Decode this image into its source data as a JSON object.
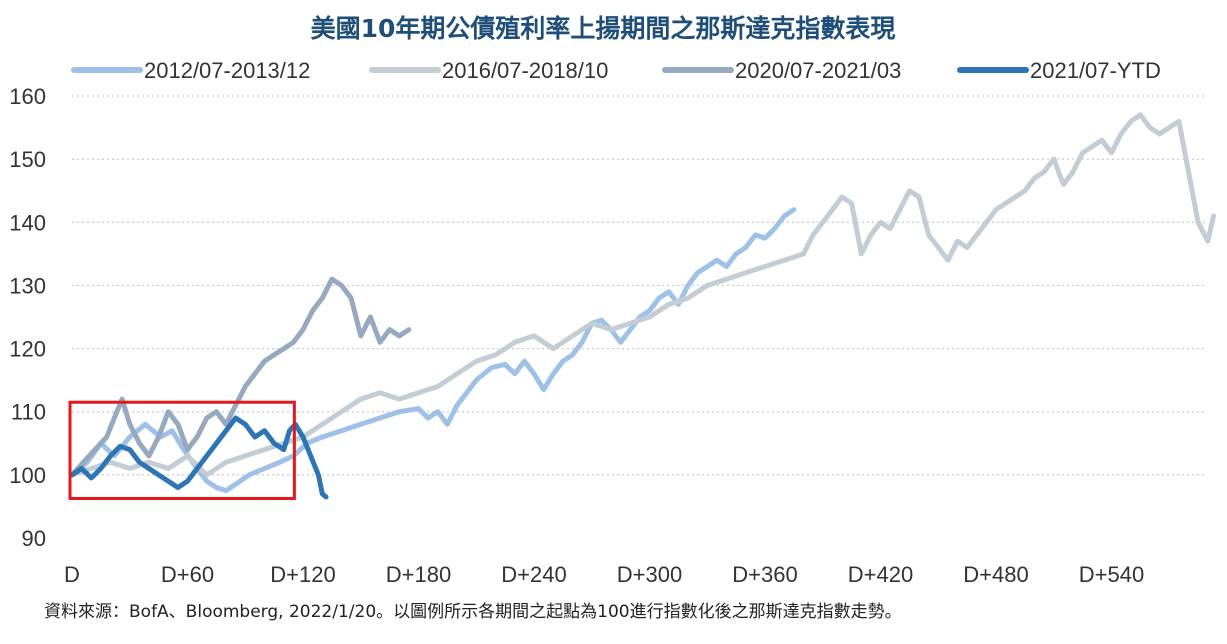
{
  "chart_data": {
    "type": "line",
    "title": "美國10年期公債殖利率上揚期間之那斯達克指數表現",
    "note": "資料來源：BofA、Bloomberg, 2022/1/20。以圖例所示各期間之起點為100進行指數化後之那斯達克指數走勢。",
    "x_ticks": [
      "D",
      "D+60",
      "D+120",
      "D+180",
      "D+240",
      "D+300",
      "D+360",
      "D+420",
      "D+480",
      "D+540"
    ],
    "y_ticks": [
      "160",
      "150",
      "140",
      "130",
      "120",
      "110",
      "100",
      "90"
    ],
    "ylim": [
      90,
      160
    ],
    "xlim": [
      0,
      590
    ],
    "grid": true,
    "legend_position": "top",
    "highlight_box": {
      "x_range": [
        0,
        115
      ],
      "y_range": [
        98,
        111.5
      ],
      "color": "#e3191b"
    },
    "series": [
      {
        "name": "2012/07-2013/12",
        "color": "#9fc1e7",
        "points": [
          [
            0,
            100
          ],
          [
            8,
            102
          ],
          [
            15,
            105
          ],
          [
            22,
            103
          ],
          [
            30,
            106
          ],
          [
            38,
            108
          ],
          [
            46,
            106
          ],
          [
            52,
            107
          ],
          [
            58,
            104
          ],
          [
            65,
            101
          ],
          [
            70,
            99
          ],
          [
            75,
            98
          ],
          [
            80,
            97.5
          ],
          [
            85,
            98.5
          ],
          [
            92,
            100
          ],
          [
            100,
            101
          ],
          [
            108,
            102
          ],
          [
            115,
            103
          ],
          [
            122,
            105
          ],
          [
            130,
            106
          ],
          [
            140,
            107
          ],
          [
            150,
            108
          ],
          [
            160,
            109
          ],
          [
            170,
            110
          ],
          [
            180,
            110.5
          ],
          [
            185,
            109
          ],
          [
            190,
            110
          ],
          [
            195,
            108
          ],
          [
            200,
            111
          ],
          [
            205,
            113
          ],
          [
            210,
            115
          ],
          [
            218,
            117
          ],
          [
            225,
            117.5
          ],
          [
            230,
            116
          ],
          [
            235,
            118
          ],
          [
            240,
            116
          ],
          [
            245,
            113.5
          ],
          [
            250,
            116
          ],
          [
            255,
            118
          ],
          [
            260,
            119
          ],
          [
            265,
            121
          ],
          [
            270,
            124
          ],
          [
            275,
            124.5
          ],
          [
            280,
            123
          ],
          [
            285,
            121
          ],
          [
            290,
            123
          ],
          [
            295,
            125
          ],
          [
            300,
            126
          ],
          [
            305,
            128
          ],
          [
            310,
            129
          ],
          [
            315,
            127
          ],
          [
            320,
            130
          ],
          [
            325,
            132
          ],
          [
            330,
            133
          ],
          [
            335,
            134
          ],
          [
            340,
            133
          ],
          [
            345,
            135
          ],
          [
            350,
            136
          ],
          [
            355,
            138
          ],
          [
            360,
            137.5
          ],
          [
            365,
            139
          ],
          [
            370,
            141
          ],
          [
            375,
            142
          ]
        ]
      },
      {
        "name": "2016/07-2018/10",
        "color": "#c4cdd5",
        "points": [
          [
            0,
            100
          ],
          [
            10,
            101
          ],
          [
            20,
            102
          ],
          [
            30,
            101
          ],
          [
            40,
            102
          ],
          [
            50,
            101
          ],
          [
            60,
            103
          ],
          [
            70,
            100
          ],
          [
            80,
            102
          ],
          [
            90,
            103
          ],
          [
            100,
            104
          ],
          [
            110,
            105
          ],
          [
            120,
            106
          ],
          [
            130,
            108
          ],
          [
            140,
            110
          ],
          [
            150,
            112
          ],
          [
            160,
            113
          ],
          [
            170,
            112
          ],
          [
            180,
            113
          ],
          [
            190,
            114
          ],
          [
            200,
            116
          ],
          [
            210,
            118
          ],
          [
            220,
            119
          ],
          [
            230,
            121
          ],
          [
            240,
            122
          ],
          [
            250,
            120
          ],
          [
            260,
            122
          ],
          [
            270,
            124
          ],
          [
            280,
            123
          ],
          [
            290,
            124
          ],
          [
            300,
            125
          ],
          [
            310,
            127
          ],
          [
            320,
            128
          ],
          [
            330,
            130
          ],
          [
            340,
            131
          ],
          [
            350,
            132
          ],
          [
            360,
            133
          ],
          [
            370,
            134
          ],
          [
            380,
            135
          ],
          [
            385,
            138
          ],
          [
            390,
            140
          ],
          [
            395,
            142
          ],
          [
            400,
            144
          ],
          [
            405,
            143
          ],
          [
            410,
            135
          ],
          [
            415,
            138
          ],
          [
            420,
            140
          ],
          [
            425,
            139
          ],
          [
            430,
            142
          ],
          [
            435,
            145
          ],
          [
            440,
            144
          ],
          [
            445,
            138
          ],
          [
            450,
            136
          ],
          [
            455,
            134
          ],
          [
            460,
            137
          ],
          [
            465,
            136
          ],
          [
            470,
            138
          ],
          [
            475,
            140
          ],
          [
            480,
            142
          ],
          [
            485,
            143
          ],
          [
            490,
            144
          ],
          [
            495,
            145
          ],
          [
            500,
            147
          ],
          [
            505,
            148
          ],
          [
            510,
            150
          ],
          [
            515,
            146
          ],
          [
            520,
            148
          ],
          [
            525,
            151
          ],
          [
            530,
            152
          ],
          [
            535,
            153
          ],
          [
            540,
            151
          ],
          [
            545,
            154
          ],
          [
            550,
            156
          ],
          [
            555,
            157
          ],
          [
            560,
            155
          ],
          [
            565,
            154
          ],
          [
            570,
            155
          ],
          [
            575,
            156
          ],
          [
            580,
            148
          ],
          [
            585,
            140
          ],
          [
            590,
            137
          ],
          [
            593,
            141
          ]
        ]
      },
      {
        "name": "2020/07-2021/03",
        "color": "#97a9bf",
        "points": [
          [
            0,
            100
          ],
          [
            6,
            102
          ],
          [
            12,
            104
          ],
          [
            18,
            106
          ],
          [
            22,
            109
          ],
          [
            26,
            112
          ],
          [
            30,
            108
          ],
          [
            35,
            105
          ],
          [
            40,
            103
          ],
          [
            45,
            106
          ],
          [
            50,
            110
          ],
          [
            55,
            108
          ],
          [
            60,
            104
          ],
          [
            65,
            106
          ],
          [
            70,
            109
          ],
          [
            75,
            110
          ],
          [
            80,
            108
          ],
          [
            85,
            111
          ],
          [
            90,
            114
          ],
          [
            95,
            116
          ],
          [
            100,
            118
          ],
          [
            105,
            119
          ],
          [
            110,
            120
          ],
          [
            115,
            121
          ],
          [
            120,
            123
          ],
          [
            125,
            126
          ],
          [
            130,
            128
          ],
          [
            135,
            131
          ],
          [
            140,
            130
          ],
          [
            145,
            128
          ],
          [
            150,
            122
          ],
          [
            155,
            125
          ],
          [
            160,
            121
          ],
          [
            165,
            123
          ],
          [
            170,
            122
          ],
          [
            175,
            123
          ]
        ]
      },
      {
        "name": "2021/07-YTD",
        "color": "#2e75b6",
        "points": [
          [
            0,
            100
          ],
          [
            5,
            101
          ],
          [
            10,
            99.5
          ],
          [
            15,
            101
          ],
          [
            20,
            103
          ],
          [
            25,
            104.5
          ],
          [
            30,
            104
          ],
          [
            35,
            102
          ],
          [
            40,
            101
          ],
          [
            45,
            100
          ],
          [
            50,
            99
          ],
          [
            55,
            98
          ],
          [
            60,
            99
          ],
          [
            65,
            101
          ],
          [
            70,
            103
          ],
          [
            75,
            105
          ],
          [
            80,
            107
          ],
          [
            85,
            109
          ],
          [
            90,
            108
          ],
          [
            95,
            106
          ],
          [
            100,
            107
          ],
          [
            105,
            105
          ],
          [
            110,
            104
          ],
          [
            113,
            107
          ],
          [
            116,
            108
          ],
          [
            120,
            106
          ],
          [
            124,
            103
          ],
          [
            128,
            100
          ],
          [
            130,
            97
          ],
          [
            132,
            96.5
          ]
        ]
      }
    ]
  }
}
